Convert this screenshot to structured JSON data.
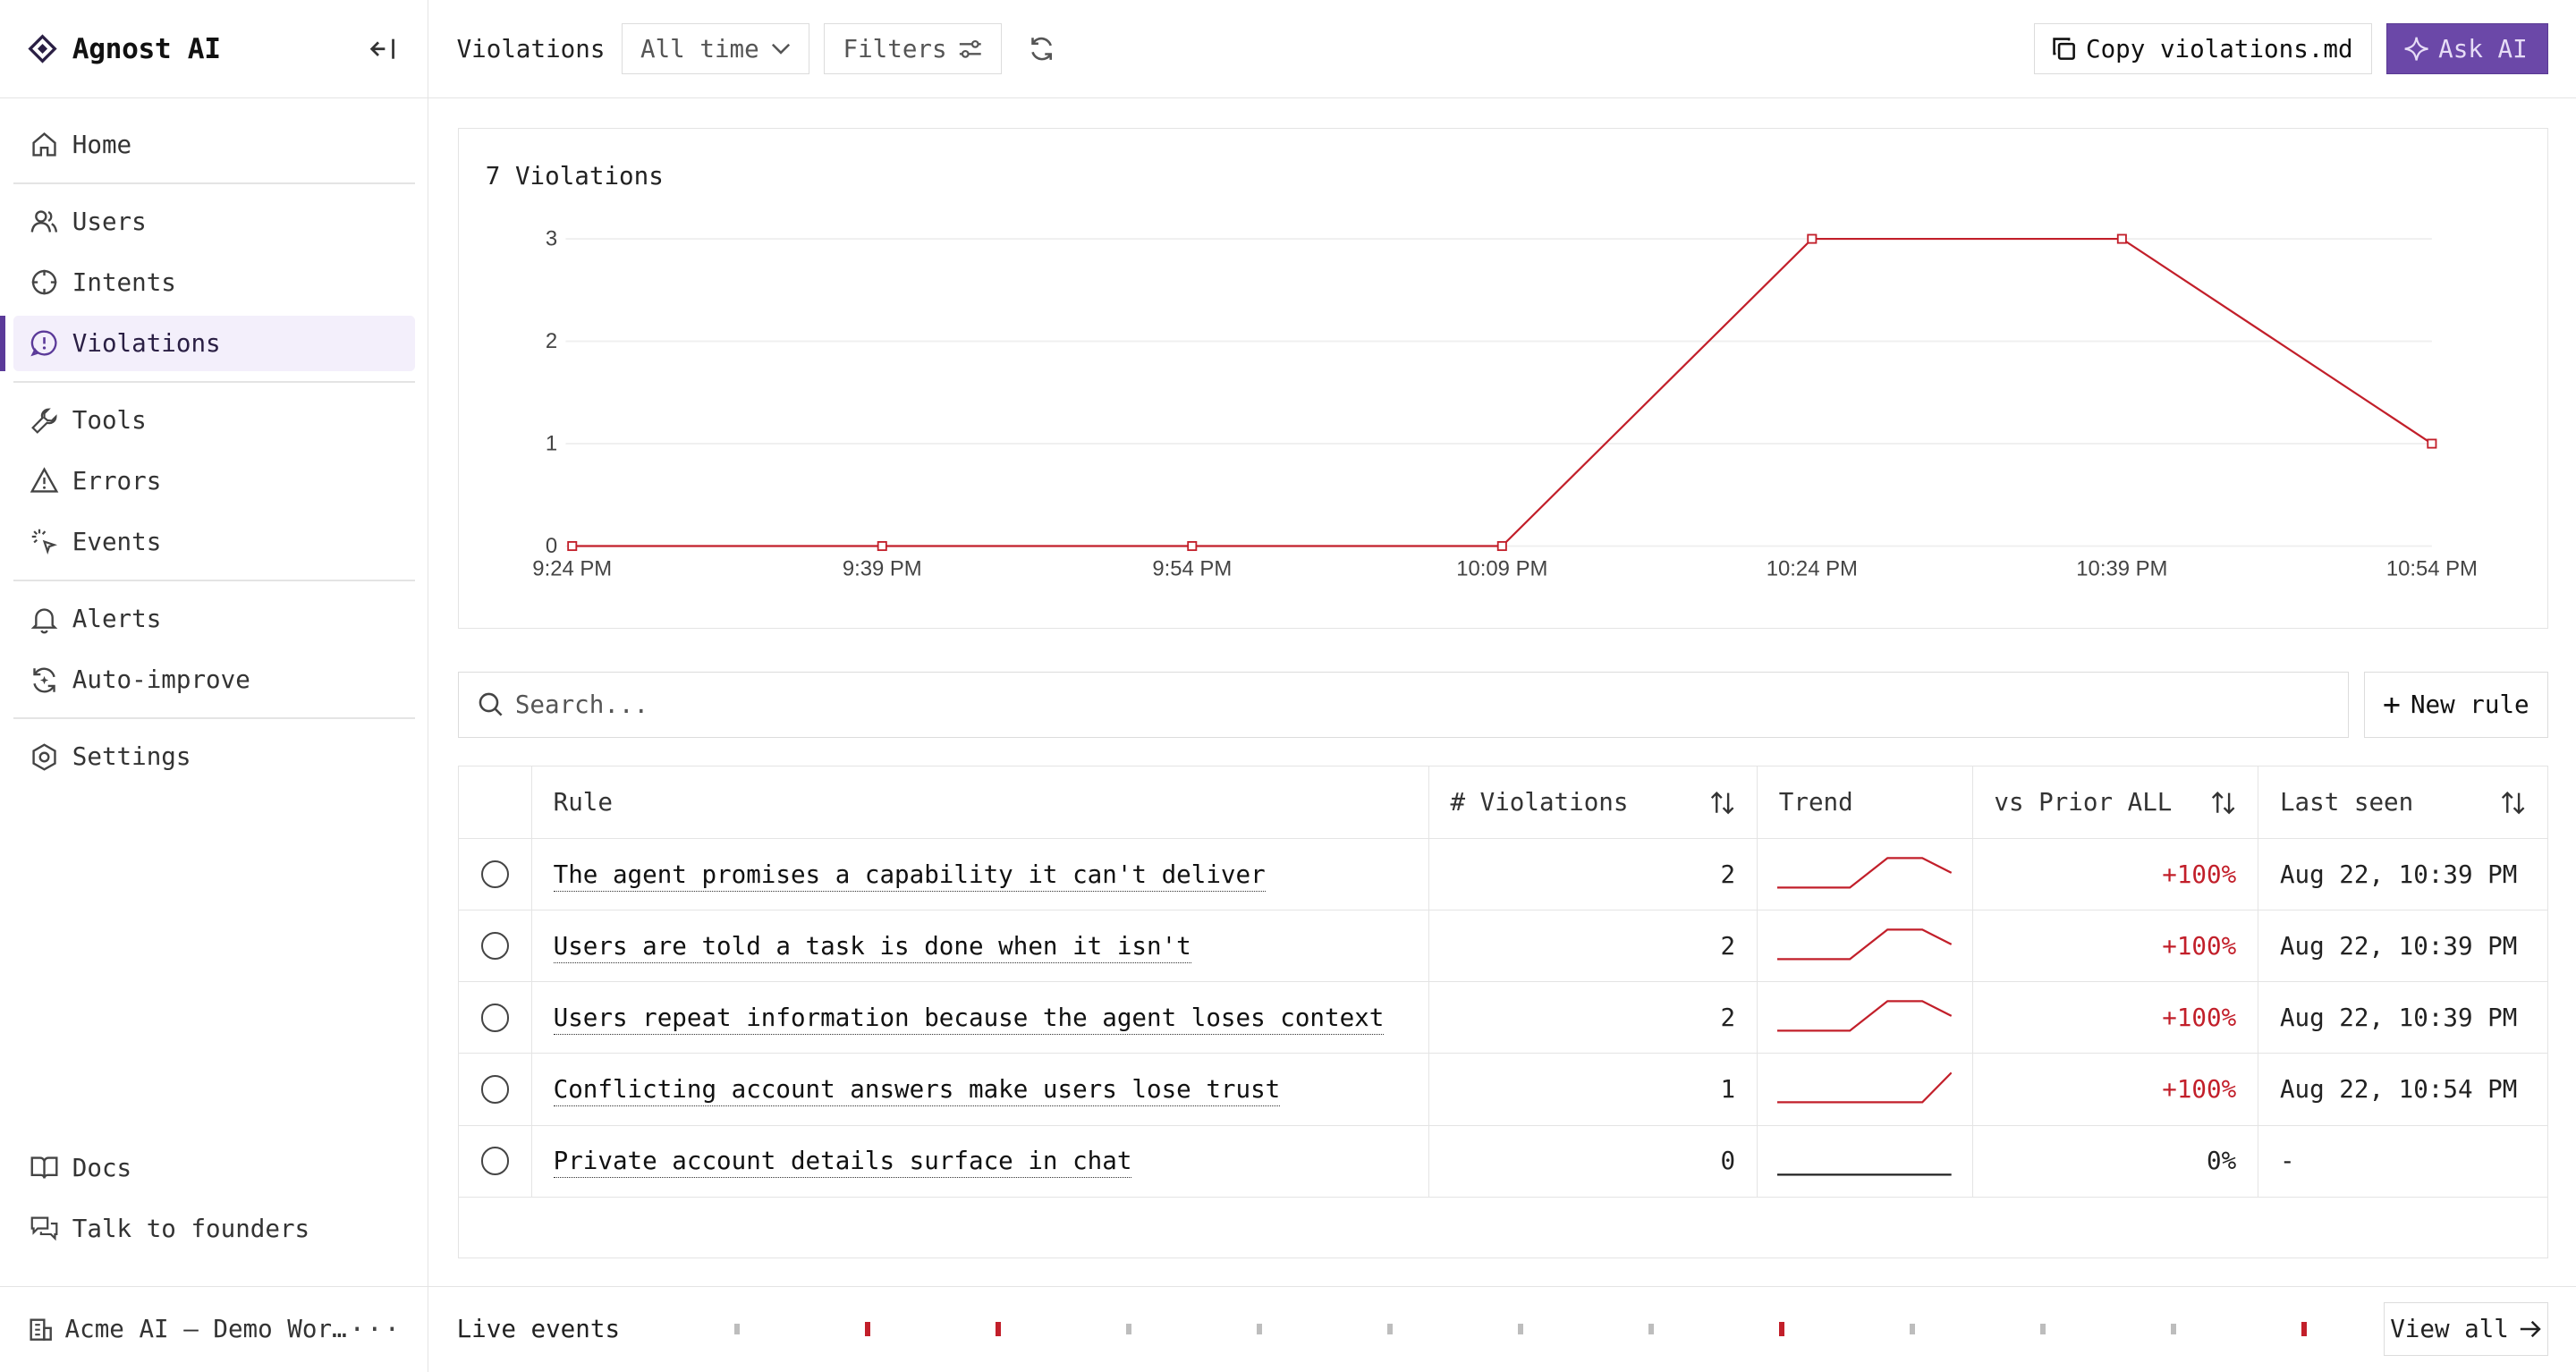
{
  "sidebar": {
    "brand": "Agnost AI",
    "nav_groups": [
      [
        {
          "label": "Home",
          "icon": "home-icon"
        }
      ],
      [
        {
          "label": "Users",
          "icon": "users-icon"
        },
        {
          "label": "Intents",
          "icon": "crosshair-icon"
        },
        {
          "label": "Violations",
          "icon": "alert-bubble-icon",
          "active": true
        }
      ],
      [
        {
          "label": "Tools",
          "icon": "wrench-icon"
        },
        {
          "label": "Errors",
          "icon": "warning-triangle-icon"
        },
        {
          "label": "Events",
          "icon": "sparkle-click-icon"
        }
      ],
      [
        {
          "label": "Alerts",
          "icon": "bell-icon"
        },
        {
          "label": "Auto-improve",
          "icon": "refresh-sparkle-icon"
        }
      ],
      [
        {
          "label": "Settings",
          "icon": "gear-icon"
        }
      ]
    ],
    "bottom_nav": [
      {
        "label": "Docs",
        "icon": "book-icon"
      },
      {
        "label": "Talk to founders",
        "icon": "chat-icon"
      }
    ],
    "workspace": "Acme AI — Demo Workspace"
  },
  "topbar": {
    "title": "Violations",
    "time_range": "All time",
    "filters_label": "Filters",
    "copy_label": "Copy violations.md",
    "ask_label": "Ask AI"
  },
  "chart_title": "7 Violations",
  "chart_data": {
    "type": "line",
    "title": "7 Violations",
    "x": [
      "9:24 PM",
      "9:39 PM",
      "9:54 PM",
      "10:09 PM",
      "10:24 PM",
      "10:39 PM",
      "10:54 PM"
    ],
    "series": [
      {
        "values": [
          0,
          0,
          0,
          0,
          3,
          3,
          1
        ]
      }
    ],
    "ylim": [
      0,
      3
    ],
    "yticks": [
      0,
      1,
      2,
      3
    ],
    "grid": true,
    "color": "#c21f2a"
  },
  "search": {
    "placeholder": "Search..."
  },
  "new_rule_label": "New rule",
  "table": {
    "columns": [
      "",
      "Rule",
      "# Violations",
      "Trend",
      "vs Prior ALL",
      "Last seen"
    ],
    "rows": [
      {
        "rule": "The agent promises a capability it can't deliver",
        "violations": "2",
        "trend": [
          0,
          0,
          0,
          0,
          1,
          1,
          0.5
        ],
        "delta": "+100%",
        "last_seen": "Aug 22, 10:39 PM"
      },
      {
        "rule": "Users are told a task is done when it isn't",
        "violations": "2",
        "trend": [
          0,
          0,
          0,
          0,
          1,
          1,
          0.5
        ],
        "delta": "+100%",
        "last_seen": "Aug 22, 10:39 PM"
      },
      {
        "rule": "Users repeat information because the agent loses context",
        "violations": "2",
        "trend": [
          0,
          0,
          0,
          0,
          1,
          1,
          0.5
        ],
        "delta": "+100%",
        "last_seen": "Aug 22, 10:39 PM"
      },
      {
        "rule": "Conflicting account answers make users lose trust",
        "violations": "1",
        "trend": [
          0,
          0,
          0,
          0,
          0,
          0,
          1
        ],
        "delta": "+100%",
        "last_seen": "Aug 22, 10:54 PM"
      },
      {
        "rule": "Private account details surface in chat",
        "violations": "0",
        "trend": [
          0,
          0,
          0,
          0,
          0,
          0,
          0
        ],
        "delta": "0%",
        "last_seen": "-"
      }
    ]
  },
  "live_events": {
    "label": "Live events",
    "ticks": [
      false,
      true,
      true,
      false,
      false,
      false,
      false,
      false,
      true,
      false,
      false,
      false,
      true
    ],
    "view_all_label": "View all"
  }
}
